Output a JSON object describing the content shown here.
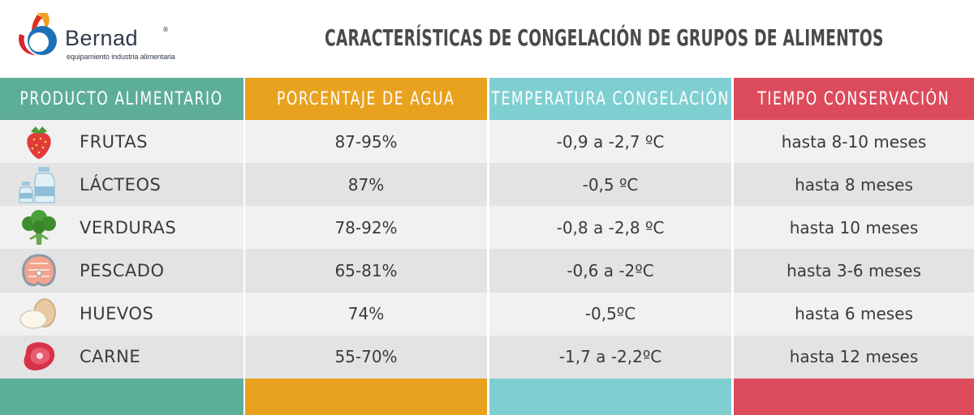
{
  "brand": {
    "name": "Bernad",
    "registered": "®",
    "tagline": "equipamiento industria alimentaria"
  },
  "page_title": "CARACTERÍSTICAS DE CONGELACIÓN DE GRUPOS DE ALIMENTOS",
  "columns": [
    {
      "header": "PRODUCTO ALIMENTARIO",
      "color": "#5dae97"
    },
    {
      "header": "PORCENTAJE DE AGUA",
      "color": "#e9a21e"
    },
    {
      "header": "TEMPERATURA CONGELACIÓN",
      "color": "#7fcfd1"
    },
    {
      "header": "TIEMPO CONSERVACIÓN",
      "color": "#dc4b5c"
    }
  ],
  "rows": [
    {
      "product": "FRUTAS",
      "icon": "strawberry-icon",
      "water": "87-95%",
      "temp": "-0,9 a -2,7 ºC",
      "time": "hasta 8-10 meses"
    },
    {
      "product": "LÁCTEOS",
      "icon": "milk-bottles-icon",
      "water": "87%",
      "temp": "-0,5 ºC",
      "time": "hasta 8 meses"
    },
    {
      "product": "VERDURAS",
      "icon": "broccoli-icon",
      "water": "78-92%",
      "temp": "-0,8 a -2,8 ºC",
      "time": "hasta 10 meses"
    },
    {
      "product": "PESCADO",
      "icon": "fish-steak-icon",
      "water": "65-81%",
      "temp": "-0,6 a -2ºC",
      "time": "hasta 3-6 meses"
    },
    {
      "product": "HUEVOS",
      "icon": "eggs-icon",
      "water": "74%",
      "temp": "-0,5ºC",
      "time": "hasta 6 meses"
    },
    {
      "product": "CARNE",
      "icon": "meat-steak-icon",
      "water": "55-70%",
      "temp": "-1,7 a -2,2ºC",
      "time": "hasta 12 meses"
    }
  ]
}
